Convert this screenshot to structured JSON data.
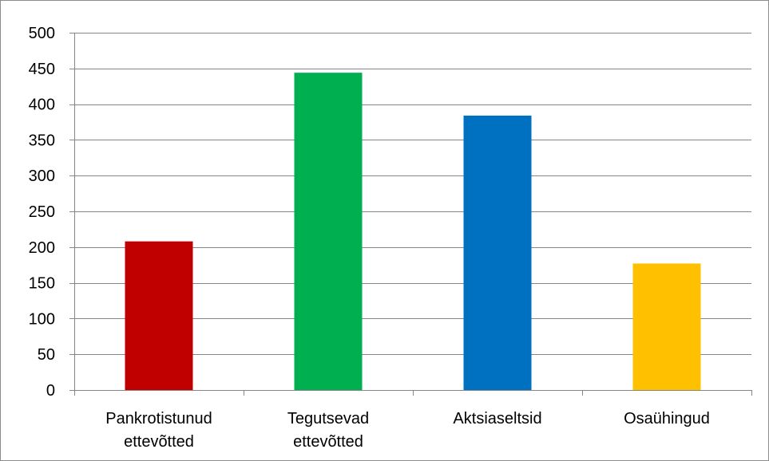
{
  "chart_data": {
    "type": "bar",
    "categories": [
      [
        "Pankrotistunud",
        "ettevõtted"
      ],
      [
        "Tegutsevad",
        "ettevõtted"
      ],
      [
        "Aktsiaseltsid"
      ],
      [
        "Osaühingud"
      ]
    ],
    "values": [
      208,
      444,
      384,
      177
    ],
    "colors": [
      "#c00000",
      "#00b050",
      "#0070c0",
      "#ffc000"
    ],
    "title": "",
    "xlabel": "",
    "ylabel": "",
    "ylim": [
      0,
      500
    ],
    "yticks": [
      0,
      50,
      100,
      150,
      200,
      250,
      300,
      350,
      400,
      450,
      500
    ],
    "grid": true,
    "legend": "none"
  }
}
